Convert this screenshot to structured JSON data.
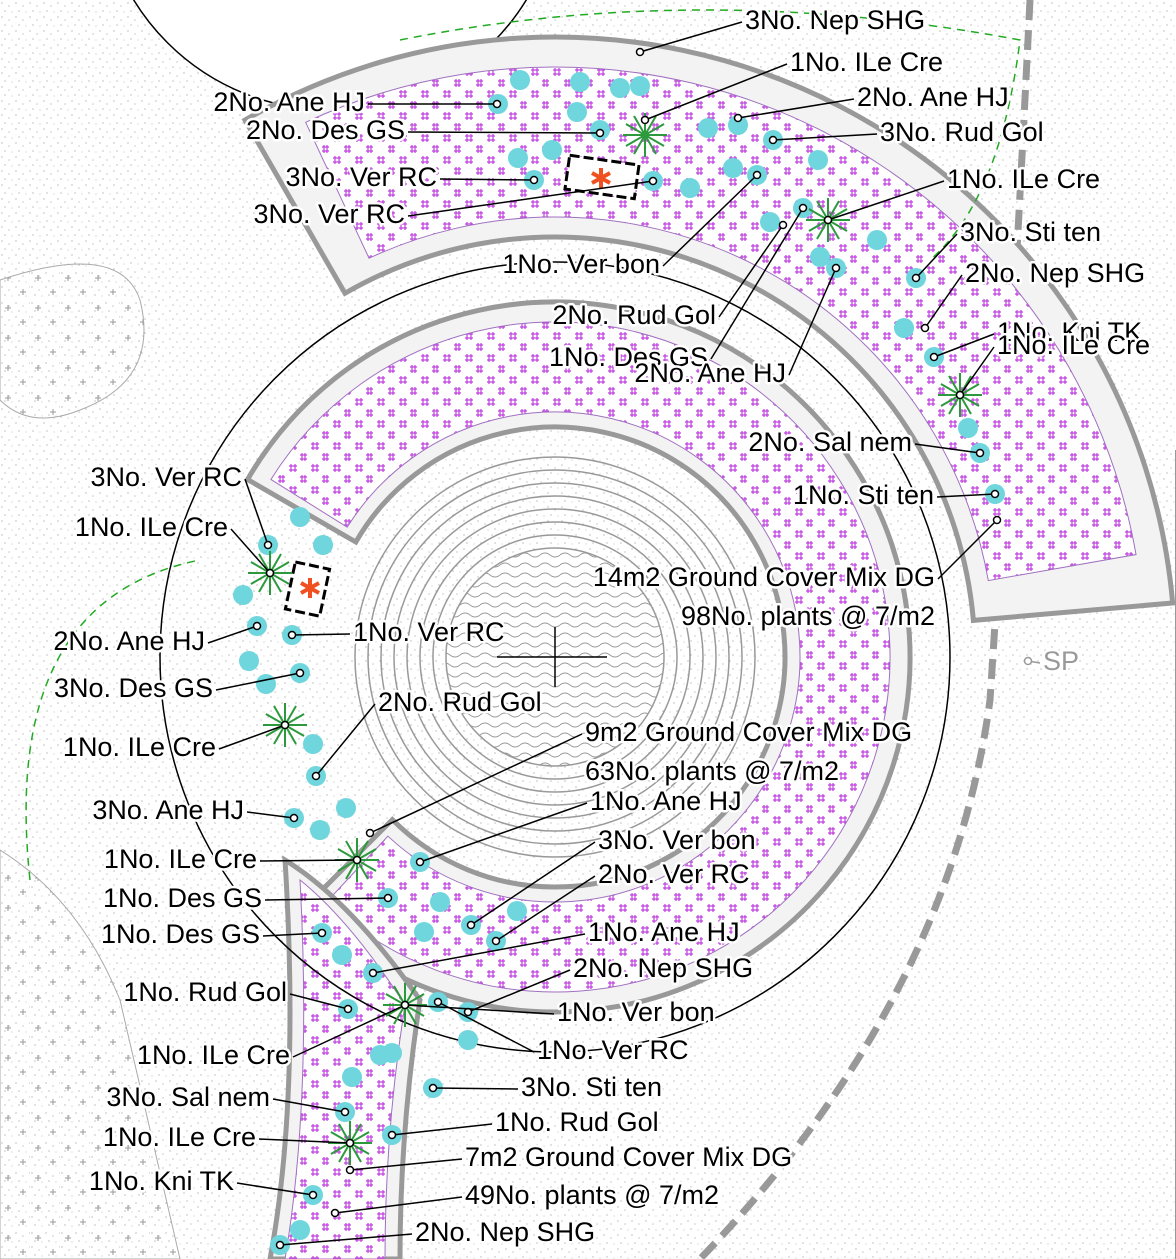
{
  "labels": [
    "3No. Nep SHG",
    "1No. ILe Cre",
    "2No. Ane HJ",
    "2No. Ane HJ",
    "2No. Des GS",
    "3No. Rud Gol",
    "3No. Ver RC",
    "1No. ILe Cre",
    "3No. Ver RC",
    "3No. Sti ten",
    "1No. Ver bon",
    "2No. Nep SHG",
    "2No. Rud Gol",
    "1No. Kni TK",
    "1No. Des GS",
    "1No. ILe Cre",
    "2No. Ane HJ",
    "2No. Sal nem",
    "1No. Sti ten",
    "3No. Ver RC",
    "1No. ILe Cre",
    "14m2 Ground Cover Mix DG",
    "98No. plants @ 7/m2",
    "1No. Ver RC",
    "SP",
    "2No. Ane HJ",
    "3No. Des GS",
    "2No. Rud Gol",
    "1No. ILe Cre",
    "9m2 Ground Cover Mix DG",
    "63No. plants @ 7/m2",
    "1No. Ane HJ",
    "3No. Ane HJ",
    "3No. Ver bon",
    "1No. ILe Cre",
    "2No. Ver RC",
    "1No. Des GS",
    "1No. Des GS",
    "1No. Ane HJ",
    "2No. Nep SHG",
    "1No. Rud Gol",
    "1No. Ver bon",
    "1No. ILe Cre",
    "1No. Ver RC",
    "3No. Sti ten",
    "3No. Sal nem",
    "1No. Rud Gol",
    "1No. ILe Cre",
    "7m2 Ground Cover Mix DG",
    "1No. Kni TK",
    "49No. plants @ 7/m2",
    "2No. Nep SHG"
  ]
}
